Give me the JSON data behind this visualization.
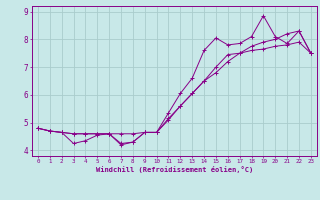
{
  "xlabel": "Windchill (Refroidissement éolien,°C)",
  "bg_color": "#c8e8e8",
  "line_color": "#880088",
  "grid_color": "#aacccc",
  "xlim": [
    -0.5,
    23.5
  ],
  "ylim": [
    3.8,
    9.2
  ],
  "yticks": [
    4,
    5,
    6,
    7,
    8,
    9
  ],
  "xticks": [
    0,
    1,
    2,
    3,
    4,
    5,
    6,
    7,
    8,
    9,
    10,
    11,
    12,
    13,
    14,
    15,
    16,
    17,
    18,
    19,
    20,
    21,
    22,
    23
  ],
  "line1_x": [
    0,
    1,
    2,
    3,
    4,
    5,
    6,
    7,
    8,
    9,
    10,
    11,
    12,
    13,
    14,
    15,
    16,
    17,
    18,
    19,
    20,
    21,
    22,
    23
  ],
  "line1_y": [
    4.8,
    4.7,
    4.65,
    4.6,
    4.6,
    4.6,
    4.6,
    4.2,
    4.3,
    4.65,
    4.65,
    5.15,
    5.6,
    6.05,
    6.5,
    7.0,
    7.45,
    7.5,
    7.6,
    7.65,
    7.75,
    7.8,
    7.9,
    7.5
  ],
  "line2_x": [
    0,
    1,
    2,
    3,
    4,
    5,
    6,
    7,
    8,
    9,
    10,
    11,
    12,
    13,
    14,
    15,
    16,
    17,
    18,
    19,
    20,
    21,
    22,
    23
  ],
  "line2_y": [
    4.8,
    4.7,
    4.65,
    4.25,
    4.35,
    4.55,
    4.6,
    4.25,
    4.3,
    4.65,
    4.65,
    5.35,
    6.05,
    6.6,
    7.6,
    8.05,
    7.8,
    7.85,
    8.1,
    8.85,
    8.1,
    7.85,
    8.3,
    7.5
  ],
  "line3_x": [
    0,
    1,
    2,
    3,
    4,
    5,
    6,
    7,
    8,
    9,
    10,
    11,
    12,
    13,
    14,
    15,
    16,
    17,
    18,
    19,
    20,
    21,
    22,
    23
  ],
  "line3_y": [
    4.8,
    4.7,
    4.65,
    4.6,
    4.6,
    4.6,
    4.6,
    4.6,
    4.6,
    4.65,
    4.65,
    5.1,
    5.6,
    6.05,
    6.5,
    6.8,
    7.2,
    7.5,
    7.75,
    7.9,
    8.0,
    8.2,
    8.3,
    7.5
  ]
}
